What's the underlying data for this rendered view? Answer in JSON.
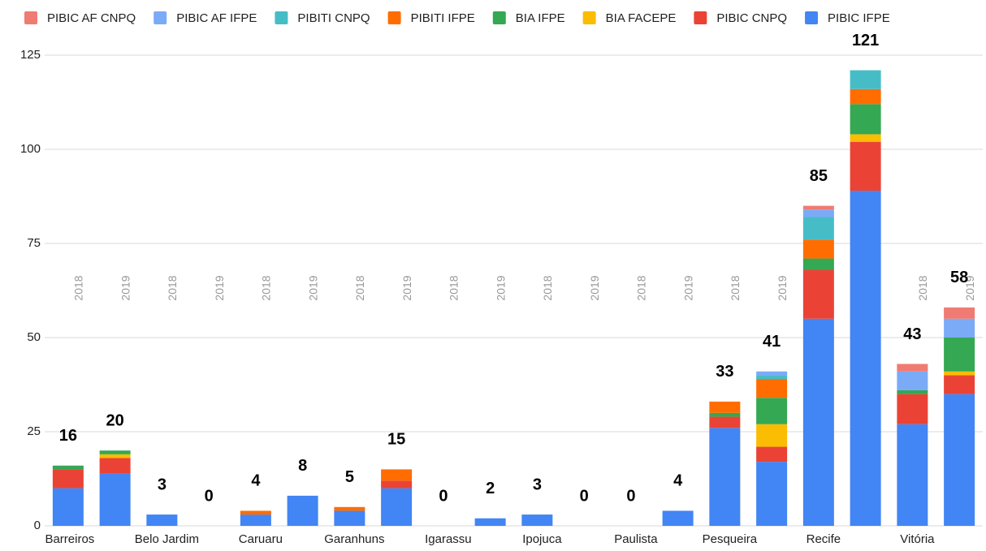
{
  "chart_data": {
    "type": "stacked_bar",
    "groups": [
      "Barreiros",
      "Belo Jardim",
      "Caruaru",
      "Garanhuns",
      "Igarassu",
      "Ipojuca",
      "Paulista",
      "Pesqueira",
      "Recife",
      "Vitória"
    ],
    "categories": [
      "2018",
      "2019",
      "2018",
      "2019",
      "2018",
      "2019",
      "2018",
      "2019",
      "2018",
      "2019",
      "2018",
      "2019",
      "2018",
      "2019",
      "2018",
      "2019",
      "2018",
      "2019",
      "2018",
      "2019"
    ],
    "series": [
      {
        "name": "PIBIC AF CNPQ",
        "color": "#f07b72",
        "values": [
          0,
          0,
          0,
          0,
          0,
          0,
          0,
          0,
          0,
          0,
          0,
          0,
          0,
          0,
          0,
          0,
          1,
          0,
          2,
          3
        ]
      },
      {
        "name": "PIBIC AF IFPE",
        "color": "#7baaf7",
        "values": [
          0,
          0,
          0,
          0,
          0,
          0,
          0,
          0,
          0,
          0,
          0,
          0,
          0,
          0,
          0,
          1,
          2,
          0,
          5,
          5
        ]
      },
      {
        "name": "PIBITI CNPQ",
        "color": "#46bdc6",
        "values": [
          0,
          0,
          0,
          0,
          0,
          0,
          0,
          0,
          0,
          0,
          0,
          0,
          0,
          0,
          0,
          1,
          6,
          5,
          0,
          0
        ]
      },
      {
        "name": "PIBITI IFPE",
        "color": "#ff6d01",
        "values": [
          0,
          0,
          0,
          0,
          1,
          0,
          1,
          3,
          0,
          0,
          0,
          0,
          0,
          0,
          3,
          5,
          5,
          4,
          0,
          0
        ]
      },
      {
        "name": "BIA IFPE",
        "color": "#34a853",
        "values": [
          1,
          1,
          0,
          0,
          0,
          0,
          0,
          0,
          0,
          0,
          0,
          0,
          0,
          0,
          1,
          7,
          3,
          8,
          1,
          9
        ]
      },
      {
        "name": "BIA FACEPE",
        "color": "#fbbc04",
        "values": [
          0,
          1,
          0,
          0,
          0,
          0,
          0,
          0,
          0,
          0,
          0,
          0,
          0,
          0,
          0,
          6,
          0,
          2,
          0,
          1
        ]
      },
      {
        "name": "PIBIC CNPQ",
        "color": "#ea4335",
        "values": [
          5,
          4,
          0,
          0,
          0,
          0,
          0,
          2,
          0,
          0,
          0,
          0,
          0,
          0,
          3,
          4,
          13,
          13,
          8,
          5
        ]
      },
      {
        "name": "PIBIC IFPE",
        "color": "#4285f4",
        "values": [
          10,
          14,
          3,
          0,
          3,
          8,
          4,
          10,
          0,
          2,
          3,
          0,
          0,
          4,
          26,
          17,
          55,
          89,
          27,
          35
        ]
      }
    ],
    "totals": [
      16,
      20,
      3,
      0,
      4,
      8,
      5,
      15,
      0,
      2,
      3,
      0,
      0,
      4,
      33,
      41,
      85,
      121,
      43,
      58
    ],
    "ylim": [
      0,
      125
    ],
    "yticks": [
      0,
      25,
      50,
      75,
      100,
      125
    ],
    "grid": true
  }
}
